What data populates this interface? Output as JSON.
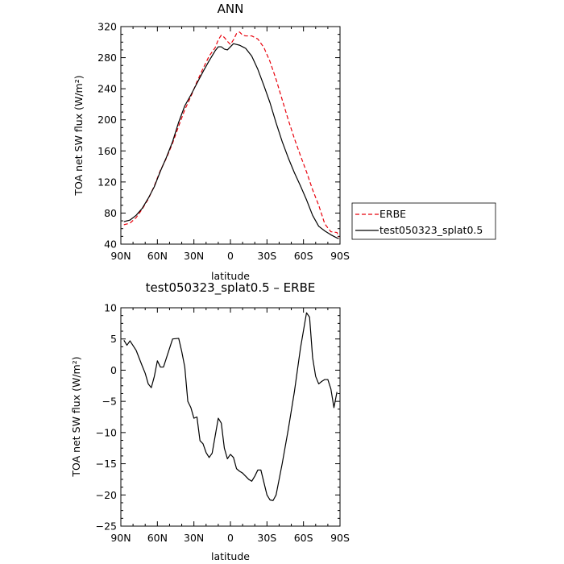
{
  "chart_data": [
    {
      "type": "line",
      "title": "ANN",
      "xlabel": "latitude",
      "ylabel": "TOA net SW flux (W/m²)",
      "ylim": [
        40,
        320
      ],
      "yticks": [
        40,
        80,
        120,
        160,
        200,
        240,
        280,
        320
      ],
      "xlim": [
        -90,
        90
      ],
      "xticks": [
        -90,
        -60,
        -30,
        0,
        30,
        60,
        90
      ],
      "xtick_labels": [
        "90N",
        "60N",
        "30N",
        "0",
        "30S",
        "60S",
        "90S"
      ],
      "legend": "right",
      "series": [
        {
          "name": "ERBE",
          "style": "dashed",
          "color": "#e8000b",
          "x": [
            -87.5,
            -82.5,
            -77.5,
            -72.5,
            -67.5,
            -62.5,
            -57.5,
            -52.5,
            -47.5,
            -42.5,
            -37.5,
            -32.5,
            -27.5,
            -22.5,
            -17.5,
            -12.5,
            -10,
            -7.5,
            -5,
            -2.5,
            0,
            2.5,
            5,
            7.5,
            10,
            12.5,
            17.5,
            22.5,
            27.5,
            32.5,
            37.5,
            42.5,
            47.5,
            52.5,
            57.5,
            62.5,
            67.5,
            72.5,
            77.5,
            82.5,
            87.5,
            89
          ],
          "y": [
            65,
            67,
            74,
            85,
            98,
            115,
            135,
            151,
            170,
            192,
            213,
            230,
            249,
            266,
            282,
            293,
            303,
            309,
            306,
            301,
            297,
            303,
            311,
            313,
            309,
            308,
            308,
            304,
            293,
            275,
            252,
            226,
            200,
            176,
            154,
            133,
            110,
            90,
            66,
            56,
            55,
            49
          ]
        },
        {
          "name": "test050323_splat0.5",
          "style": "solid",
          "color": "#000000",
          "x": [
            -87.5,
            -82.5,
            -77.5,
            -72.5,
            -67.5,
            -62.5,
            -57.5,
            -52.5,
            -47.5,
            -42.5,
            -37.5,
            -32.5,
            -27.5,
            -22.5,
            -17.5,
            -12.5,
            -10,
            -7.5,
            -5,
            -2.5,
            0,
            2.5,
            5,
            7.5,
            10,
            12.5,
            17.5,
            22.5,
            27.5,
            32.5,
            37.5,
            42.5,
            47.5,
            52.5,
            57.5,
            62.5,
            67.5,
            72.5,
            77.5,
            82.5,
            87.5,
            89
          ],
          "y": [
            69,
            71,
            77,
            86,
            99,
            114,
            134,
            152,
            172,
            197,
            218,
            232,
            247,
            262,
            276,
            289,
            294,
            294,
            291,
            290,
            294,
            298,
            297,
            296,
            294,
            292,
            282,
            265,
            244,
            222,
            196,
            172,
            151,
            132,
            115,
            97,
            77,
            63,
            57,
            52,
            48,
            47
          ]
        }
      ]
    },
    {
      "type": "line",
      "title": "test050323_splat0.5 – ERBE",
      "xlabel": "latitude",
      "ylabel": "TOA net SW flux (W/m²)",
      "ylim": [
        -25,
        10
      ],
      "yticks": [
        -25,
        -20,
        -15,
        -10,
        -5,
        0,
        5,
        10
      ],
      "ytick_labels": [
        "−25",
        "−20",
        "−15",
        "−10",
        "−5",
        "0",
        "5",
        "10"
      ],
      "xlim": [
        -90,
        90
      ],
      "xticks": [
        -90,
        -60,
        -30,
        0,
        30,
        60,
        90
      ],
      "xtick_labels": [
        "90N",
        "60N",
        "30N",
        "0",
        "30S",
        "60S",
        "90S"
      ],
      "series": [
        {
          "style": "solid",
          "color": "#000000",
          "x": [
            -87.5,
            -85,
            -82.5,
            -77.5,
            -72.5,
            -70,
            -67.5,
            -65,
            -62.5,
            -60,
            -57.5,
            -55,
            -52.5,
            -50,
            -47.5,
            -42.5,
            -40,
            -37.5,
            -35,
            -32.5,
            -30,
            -27.5,
            -25,
            -22.5,
            -20,
            -17.5,
            -15,
            -12.5,
            -10,
            -7.5,
            -5,
            -2.5,
            0,
            2.5,
            5,
            7.5,
            10,
            12.5,
            15,
            17.5,
            20,
            22.5,
            25,
            27.5,
            30,
            32.5,
            35,
            37.5,
            40,
            42.5,
            47.5,
            52.5,
            57.5,
            62.5,
            65,
            67.5,
            70,
            72.5,
            75,
            77.5,
            80,
            82.5,
            85,
            87.5
          ],
          "y": [
            4.8,
            4.0,
            4.7,
            3.2,
            0.7,
            -0.5,
            -2.2,
            -2.8,
            -1.0,
            1.5,
            0.5,
            0.5,
            2.0,
            3.5,
            5.0,
            5.1,
            3.0,
            0.5,
            -5.0,
            -6.0,
            -7.7,
            -7.5,
            -11.3,
            -11.8,
            -13.2,
            -14.0,
            -13.3,
            -10.5,
            -7.7,
            -8.5,
            -12.5,
            -14.2,
            -13.5,
            -14.0,
            -15.8,
            -16.2,
            -16.5,
            -17.0,
            -17.5,
            -17.8,
            -17.0,
            -16.0,
            -16.0,
            -18.0,
            -20.0,
            -20.8,
            -20.9,
            -20.0,
            -17.5,
            -15.0,
            -9.5,
            -3.5,
            3.5,
            9.2,
            8.5,
            2.0,
            -1.0,
            -2.2,
            -1.8,
            -1.5,
            -1.5,
            -3.0,
            -6.0,
            -3.5
          ]
        }
      ]
    }
  ]
}
